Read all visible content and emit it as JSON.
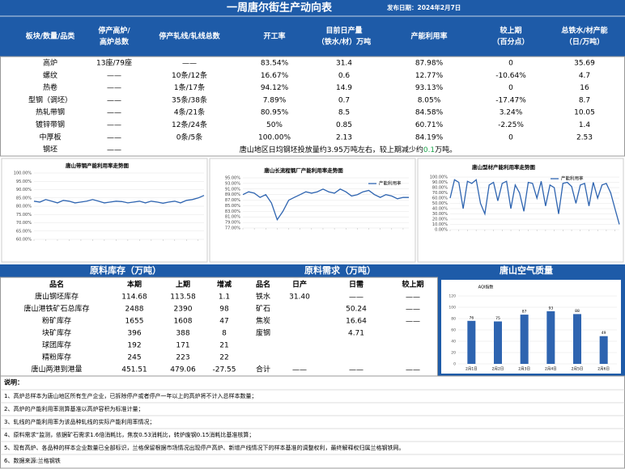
{
  "header": {
    "title": "一周唐尔街生产动向表",
    "date": "发布日期：2024年2月7日"
  },
  "production_table": {
    "columns": [
      [
        "板块/数量/品类"
      ],
      [
        "停产高炉/",
        "高炉总数"
      ],
      [
        "停产轧线/轧线总数"
      ],
      [
        "开工率"
      ],
      [
        "目前日产量",
        "（铁水/材）万吨"
      ],
      [
        "产能利用率"
      ],
      [
        "较上期",
        "（百分点）"
      ],
      [
        "总铁水/材产能",
        "（日/万吨）"
      ]
    ],
    "rows": [
      [
        "高炉",
        "13座/79座",
        "——",
        "83.54%",
        "31.4",
        "87.98%",
        "0",
        "35.69"
      ],
      [
        "螺纹",
        "——",
        "10条/12条",
        "16.67%",
        "0.6",
        "12.77%",
        "-10.64%",
        "4.7"
      ],
      [
        "热卷",
        "——",
        "1条/17条",
        "94.12%",
        "14.9",
        "93.13%",
        "0",
        "16"
      ],
      [
        "型钢（调坯）",
        "——",
        "35条/38条",
        "7.89%",
        "0.7",
        "8.05%",
        "-17.47%",
        "8.7"
      ],
      [
        "热轧带钢",
        "——",
        "4条/21条",
        "80.95%",
        "8.5",
        "84.58%",
        "3.24%",
        "10.05"
      ],
      [
        "镀锌带钢",
        "——",
        "12条/24条",
        "50%",
        "0.85",
        "60.71%",
        "-2.25%",
        "1.4"
      ],
      [
        "中厚板",
        "——",
        "0条/5条",
        "100.00%",
        "2.13",
        "84.19%",
        "0",
        "2.53"
      ]
    ],
    "billet_row": {
      "cells": [
        "钢坯",
        "——"
      ],
      "note": [
        "唐山地区日均钢坯投放量约3.95万吨左右，较上期减少约",
        "0.1",
        "万吨。"
      ]
    }
  },
  "chart_data": [
    {
      "type": "line",
      "title": "唐山带钢产能利用率走势图",
      "color": "#2e64b0",
      "values": [
        83,
        82.5,
        84,
        83,
        82,
        83.5,
        83,
        82,
        82.5,
        83,
        84,
        83,
        82,
        82.5,
        83,
        82.8,
        82,
        82.5,
        83,
        82,
        83,
        82.5,
        81.8,
        82.5,
        83,
        82,
        83.5,
        84,
        85,
        86.5
      ],
      "ylim": [
        60,
        100
      ],
      "yticks": [
        {
          "value": 60,
          "label": "60.00%"
        },
        {
          "value": 65,
          "label": "65.00%"
        },
        {
          "value": 70,
          "label": "70.00%"
        },
        {
          "value": 75,
          "label": "75.00%"
        },
        {
          "value": 80,
          "label": "80.00%"
        },
        {
          "value": 85,
          "label": "85.00%"
        },
        {
          "value": 90,
          "label": "90.00%"
        },
        {
          "value": 95,
          "label": "95.00%"
        },
        {
          "value": 100,
          "label": "100.00%"
        }
      ],
      "grid": true
    },
    {
      "type": "line",
      "title": "唐山长流程钢厂产能利用率走势图",
      "series": [
        {
          "name": "产能利用率",
          "color": "#2e64b0",
          "values": [
            89,
            90,
            89.5,
            88,
            89,
            86,
            80,
            83,
            87,
            88,
            89,
            90,
            89.5,
            90,
            91,
            90,
            89.5,
            91,
            90,
            88.5,
            89,
            90,
            90.5,
            89,
            88,
            89,
            88.5,
            87.5,
            88,
            87.98
          ]
        }
      ],
      "ylim": [
        77,
        95
      ],
      "yticks": [
        {
          "value": 77,
          "label": "77.00%"
        },
        {
          "value": 79,
          "label": "79.00%"
        },
        {
          "value": 81,
          "label": "81.00%"
        },
        {
          "value": 83,
          "label": "83.00%"
        },
        {
          "value": 85,
          "label": "85.00%"
        },
        {
          "value": 87,
          "label": "87.00%"
        },
        {
          "value": 89,
          "label": "89.00%"
        },
        {
          "value": 91,
          "label": "91.00%"
        },
        {
          "value": 93,
          "label": "93.00%"
        },
        {
          "value": 95,
          "label": "95.00%"
        }
      ],
      "grid": true
    },
    {
      "type": "line",
      "title": "唐山型材产能利用率走势图",
      "series": [
        {
          "name": "产能利用率",
          "color": "#2e64b0",
          "values": [
            60,
            95,
            90,
            40,
            92,
            88,
            95,
            50,
            30,
            85,
            90,
            55,
            88,
            92,
            40,
            85,
            70,
            35,
            90,
            88,
            60,
            92,
            45,
            85,
            80,
            30,
            88,
            90,
            82,
            50,
            85,
            88,
            45,
            90,
            60,
            85,
            88,
            70,
            40,
            10
          ]
        }
      ],
      "ylim": [
        0,
        100
      ],
      "yticks": [
        {
          "value": 0,
          "label": "0.00%"
        },
        {
          "value": 10,
          "label": "10.00%"
        },
        {
          "value": 20,
          "label": "20.00%"
        },
        {
          "value": 30,
          "label": "30.00%"
        },
        {
          "value": 40,
          "label": "40.00%"
        },
        {
          "value": 50,
          "label": "50.00%"
        },
        {
          "value": 60,
          "label": "60.00%"
        },
        {
          "value": 70,
          "label": "70.00%"
        },
        {
          "value": 80,
          "label": "80.00%"
        },
        {
          "value": 90,
          "label": "90.00%"
        },
        {
          "value": 100,
          "label": "100.00%"
        }
      ],
      "grid": true
    },
    {
      "type": "bar",
      "title": "AQI指数",
      "color": "#2e64b0",
      "categories": [
        "2月1日",
        "2月2日",
        "2月3日",
        "2月4日",
        "2月5日",
        "2月6日"
      ],
      "values": [
        76,
        75,
        87,
        93,
        88,
        49
      ],
      "ylim": [
        0,
        120
      ],
      "yticks": [
        0,
        20,
        40,
        60,
        80,
        100,
        120
      ],
      "grid": true
    }
  ],
  "inventory": {
    "title": "原料库存（万吨）",
    "columns": [
      "品名",
      "本期",
      "上期",
      "增减"
    ],
    "rows": [
      [
        "唐山钢坯库存",
        "114.68",
        "113.58",
        "1.1"
      ],
      [
        "唐山港铁矿石总库存",
        "2488",
        "2390",
        "98"
      ],
      [
        "粉矿库存",
        "1655",
        "1608",
        "47"
      ],
      [
        "块矿库存",
        "396",
        "388",
        "8"
      ],
      [
        "球团库存",
        "192",
        "171",
        "21"
      ],
      [
        "精粉库存",
        "245",
        "223",
        "22"
      ],
      [
        "唐山两港到港量",
        "451.51",
        "479.06",
        "-27.55"
      ]
    ]
  },
  "demand": {
    "title": "原料需求（万吨）",
    "columns": [
      "品名",
      "日产",
      "日需",
      "较上期"
    ],
    "rows": [
      [
        "铁水",
        "31.40",
        "——",
        "——"
      ],
      [
        "矿石",
        null,
        "50.24",
        "——"
      ],
      [
        "焦炭",
        null,
        "16.64",
        "——"
      ],
      [
        "废钢",
        null,
        "4.71",
        null
      ]
    ],
    "total_row": [
      "合计",
      "——",
      "——",
      "——"
    ]
  },
  "air_quality": {
    "title": "唐山空气质量"
  },
  "notes": {
    "label": "说明：",
    "items": [
      "1、高炉总样本为唐山地区所有生产企业，已拆除停产或者停产一年以上的高炉将不计入总样本数量；",
      "2、高炉的产能利用率测算基准以高炉容积为标准计量；",
      "3、轧线的产能利用率为该品种轧线的实际产能利用率情况；",
      "4、原料需求”监测，依据矿石需求1.6倍消耗比，焦炭0.53消耗比，转炉废钢0.15消耗比基准核算；",
      "5、现有高炉、各品种的样本企业数量已全部标识，兰格保留根据市场情况出现停产高炉、新增产线情况下的样本基准的调整权利，最终解释权归属兰格钢铁网。",
      "6、数据来源:兰格钢铁"
    ]
  }
}
